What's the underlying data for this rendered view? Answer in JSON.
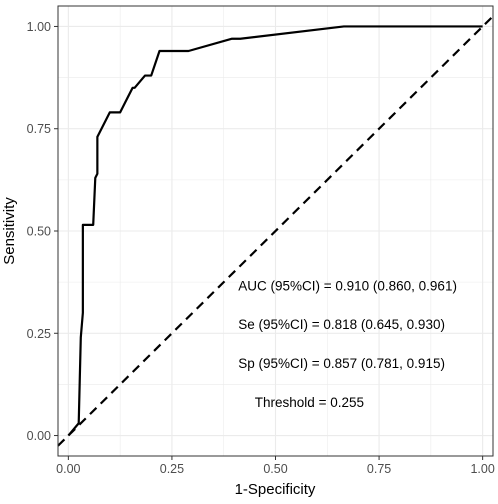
{
  "chart_data": {
    "type": "line",
    "title": "",
    "xlabel": "1-Specificity",
    "ylabel": "Sensitivity",
    "xlim": [
      -0.025,
      1.025
    ],
    "ylim": [
      -0.05,
      1.05
    ],
    "x_ticks": [
      0.0,
      0.25,
      0.5,
      0.75,
      1.0
    ],
    "x_tick_labels": [
      "0.00",
      "0.25",
      "0.50",
      "0.75",
      "1.00"
    ],
    "y_ticks": [
      0.0,
      0.25,
      0.5,
      0.75,
      1.0
    ],
    "y_tick_labels": [
      "0.00",
      "0.25",
      "0.50",
      "0.75",
      "1.00"
    ],
    "grid": true,
    "background": "#ffffff",
    "grid_color": "#ebebeb",
    "series": [
      {
        "style": "solid",
        "color": "#000000",
        "points": [
          [
            0.0,
            0.0
          ],
          [
            0.025,
            0.03
          ],
          [
            0.03,
            0.24
          ],
          [
            0.035,
            0.3
          ],
          [
            0.035,
            0.515
          ],
          [
            0.06,
            0.515
          ],
          [
            0.065,
            0.63
          ],
          [
            0.07,
            0.64
          ],
          [
            0.07,
            0.73
          ],
          [
            0.1,
            0.79
          ],
          [
            0.125,
            0.79
          ],
          [
            0.155,
            0.85
          ],
          [
            0.16,
            0.85
          ],
          [
            0.185,
            0.88
          ],
          [
            0.2,
            0.88
          ],
          [
            0.22,
            0.94
          ],
          [
            0.29,
            0.94
          ],
          [
            0.395,
            0.97
          ],
          [
            0.415,
            0.97
          ],
          [
            0.665,
            1.0
          ],
          [
            1.0,
            1.0
          ]
        ]
      },
      {
        "style": "dashed",
        "color": "#000000",
        "points": [
          [
            -0.025,
            -0.025
          ],
          [
            1.025,
            1.025
          ]
        ]
      }
    ],
    "annotations": [
      {
        "text": "AUC (95%CI) = 0.910 (0.860, 0.961)",
        "x": 0.41,
        "y": 0.355
      },
      {
        "text": "Se (95%CI) = 0.818 (0.645, 0.930)",
        "x": 0.41,
        "y": 0.26
      },
      {
        "text": "Sp (95%CI) = 0.857 (0.781, 0.915)",
        "x": 0.41,
        "y": 0.165
      },
      {
        "text": "Threshold = 0.255",
        "x": 0.45,
        "y": 0.07
      }
    ]
  }
}
